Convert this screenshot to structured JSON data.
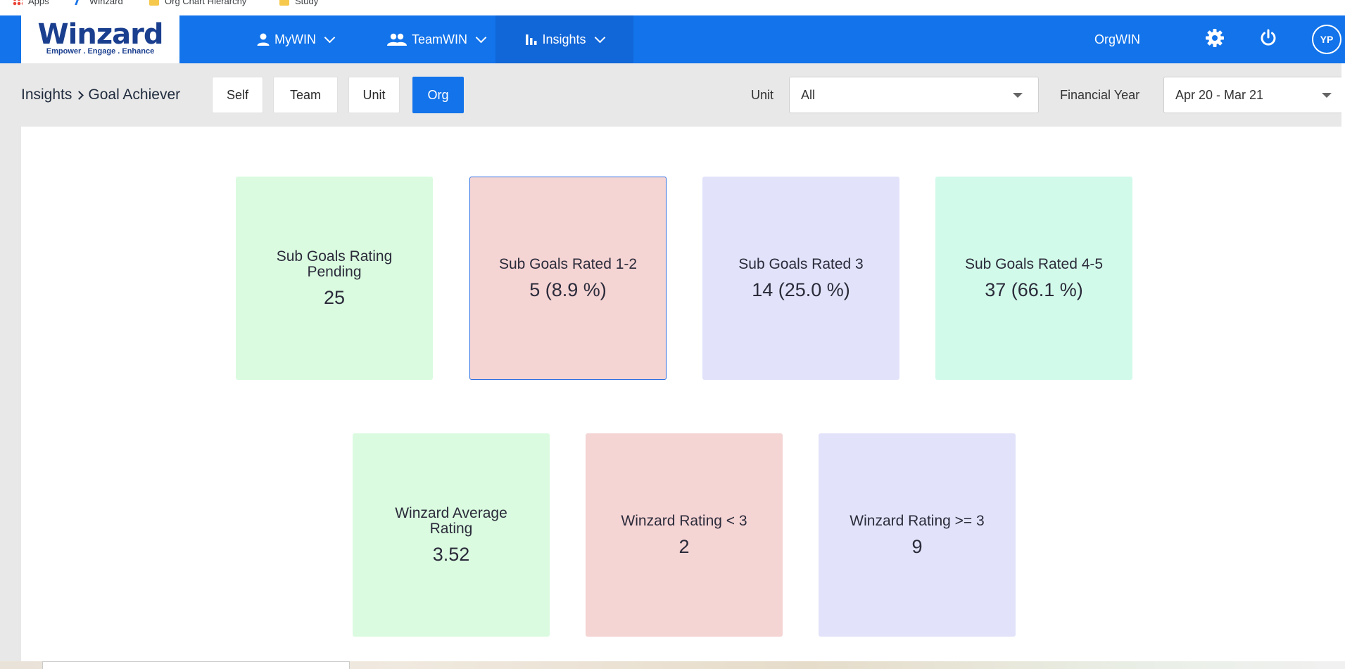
{
  "bookmarks": [
    {
      "label": "Apps",
      "icon": "apps-grid-icon"
    },
    {
      "label": "Winzard",
      "icon": "winzard-favicon-icon"
    },
    {
      "label": "Org Chart Hierarchy",
      "icon": "folder-icon"
    },
    {
      "label": "Study",
      "icon": "folder-icon"
    }
  ],
  "header": {
    "logo_text": "Winzard",
    "logo_tagline": "Empower . Engage . Enhance",
    "nav": [
      {
        "label": "MyWIN",
        "icon": "user-icon"
      },
      {
        "label": "TeamWIN",
        "icon": "team-icon"
      },
      {
        "label": "Insights",
        "icon": "bar-chart-icon",
        "active": true
      }
    ],
    "orgwin_label": "OrgWIN",
    "avatar_initials": "YP",
    "brand_color": "#1273ea"
  },
  "subbar": {
    "breadcrumb_root": "Insights",
    "breadcrumb_current": "Goal Achiever",
    "scopes": [
      "Self",
      "Team",
      "Unit",
      "Org"
    ],
    "active_scope": "Org",
    "unit_label": "Unit",
    "unit_value": "All",
    "fy_label": "Financial Year",
    "fy_value": "Apr 20 - Mar 21"
  },
  "cards": [
    {
      "title": "Sub Goals Rating Pending",
      "value": "25",
      "color": "#dafbe0"
    },
    {
      "title": "Sub Goals Rated 1-2",
      "value": "5 (8.9 %)",
      "color": "#f5d4d4",
      "selected": true
    },
    {
      "title": "Sub Goals Rated 3",
      "value": "14 (25.0 %)",
      "color": "#e2e3fa"
    },
    {
      "title": "Sub Goals Rated 4-5",
      "value": "37 (66.1 %)",
      "color": "#d2faea"
    },
    {
      "title": "Winzard Average Rating",
      "value": "3.52",
      "color": "#dafbe0"
    },
    {
      "title": "Winzard Rating < 3",
      "value": "2",
      "color": "#f5d4d4"
    },
    {
      "title": "Winzard Rating >= 3",
      "value": "9",
      "color": "#e2e3fa"
    }
  ]
}
